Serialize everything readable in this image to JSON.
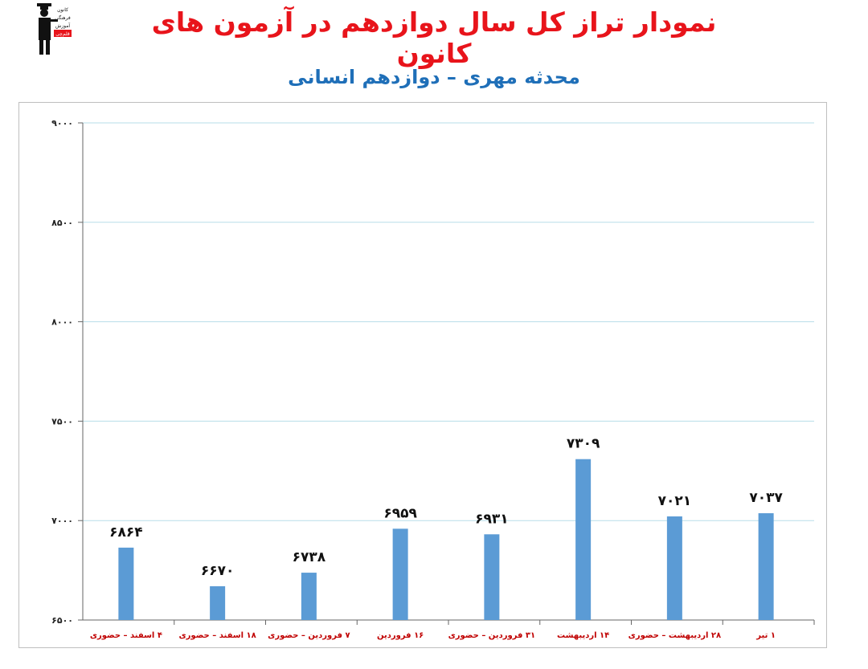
{
  "header": {
    "title": "نمودار تراز کل سال دوازدهم در آزمون های کانون",
    "subtitle": "محدثه مهری – دوازدهم انسانی"
  },
  "logo": {
    "icon": "graduate-figure-icon",
    "text_lines": [
      "کانون",
      "فرهنگی",
      "آموزش",
      "قلم‌چی"
    ]
  },
  "colors": {
    "title": "#e8141b",
    "subtitle": "#1f6fb8",
    "bar": "#5b9bd5",
    "grid": "#b7dde8",
    "category_label": "#c00000"
  },
  "chart_data": {
    "type": "bar",
    "title": "",
    "xlabel": "",
    "ylabel": "",
    "ylim": [
      6500,
      9000
    ],
    "yticks": [
      6500,
      7000,
      7500,
      8000,
      8500,
      9000
    ],
    "ytick_labels": [
      "۶۵۰۰",
      "۷۰۰۰",
      "۷۵۰۰",
      "۸۰۰۰",
      "۸۵۰۰",
      "۹۰۰۰"
    ],
    "grid": true,
    "categories": [
      "۴ اسفند – حضوری",
      "۱۸ اسفند – حضوری",
      "۷ فروردین – حضوری",
      "۱۶ فروردین",
      "۳۱ فروردین – حضوری",
      "۱۴ اردیبهشت",
      "۲۸ اردیبهشت – حضوری",
      "۱ تیر"
    ],
    "values": [
      6864,
      6670,
      6738,
      6959,
      6931,
      7309,
      7021,
      7037
    ],
    "value_labels": [
      "۶۸۶۴",
      "۶۶۷۰",
      "۶۷۳۸",
      "۶۹۵۹",
      "۶۹۳۱",
      "۷۳۰۹",
      "۷۰۲۱",
      "۷۰۳۷"
    ]
  }
}
